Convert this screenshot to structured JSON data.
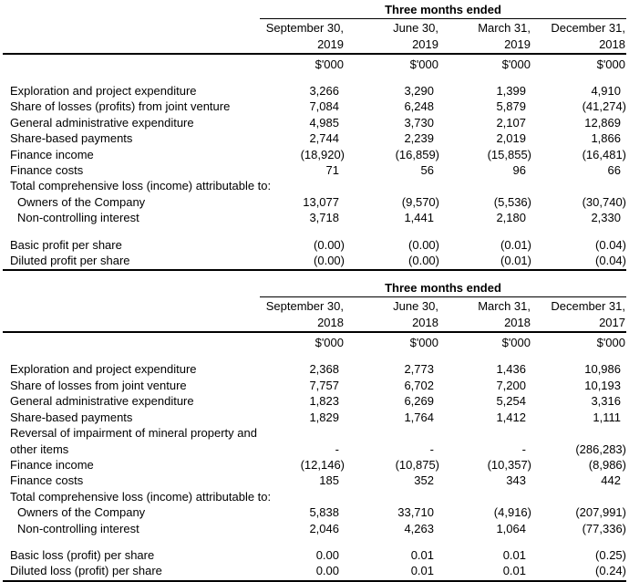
{
  "page": {
    "background_color": "#ffffff",
    "text_color": "#000000",
    "rule_color": "#000000"
  },
  "tables": [
    {
      "title": "Three months ended",
      "columns": [
        {
          "month": "September 30,",
          "year": "2019"
        },
        {
          "month": "June 30,",
          "year": "2019"
        },
        {
          "month": "March 31,",
          "year": "2019"
        },
        {
          "month": "December 31,",
          "year": "2018"
        }
      ],
      "units": [
        "$'000",
        "$'000",
        "$'000",
        "$'000"
      ],
      "rows": [
        {
          "label": "Exploration and project expenditure",
          "values": [
            "3,266",
            "3,290",
            "1,399",
            "4,910"
          ]
        },
        {
          "label": "Share of losses (profits) from joint venture",
          "values": [
            "7,084",
            "6,248",
            "5,879",
            "(41,274)"
          ]
        },
        {
          "label": "General administrative expenditure",
          "values": [
            "4,985",
            "3,730",
            "2,107",
            "12,869"
          ]
        },
        {
          "label": "Share-based payments",
          "values": [
            "2,744",
            "2,239",
            "2,019",
            "1,866"
          ]
        },
        {
          "label": "Finance income",
          "values": [
            "(18,920)",
            "(16,859)",
            "(15,855)",
            "(16,481)"
          ]
        },
        {
          "label": "Finance costs",
          "values": [
            "71",
            "56",
            "96",
            "66"
          ]
        },
        {
          "label": "Total comprehensive loss (income) attributable to:",
          "span": true
        },
        {
          "label": "Owners of the Company",
          "indent": true,
          "values": [
            "13,077",
            "(9,570)",
            "(5,536)",
            "(30,740)"
          ]
        },
        {
          "label": "Non-controlling interest",
          "indent": true,
          "values": [
            "3,718",
            "1,441",
            "2,180",
            "2,330"
          ]
        },
        {
          "spacer": true
        },
        {
          "label": "Basic profit per share",
          "values": [
            "(0.00)",
            "(0.00)",
            "(0.01)",
            "(0.04)"
          ]
        },
        {
          "label": "Diluted profit per share",
          "values": [
            "(0.00)",
            "(0.00)",
            "(0.01)",
            "(0.04)"
          ]
        }
      ]
    },
    {
      "title": "Three months ended",
      "columns": [
        {
          "month": "September 30,",
          "year": "2018"
        },
        {
          "month": "June 30,",
          "year": "2018"
        },
        {
          "month": "March 31,",
          "year": "2018"
        },
        {
          "month": "December 31,",
          "year": "2017"
        }
      ],
      "units": [
        "$'000",
        "$'000",
        "$'000",
        "$'000"
      ],
      "rows": [
        {
          "label": "Exploration and project expenditure",
          "values": [
            "2,368",
            "2,773",
            "1,436",
            "10,986"
          ]
        },
        {
          "label": "Share of losses from joint venture",
          "values": [
            "7,757",
            "6,702",
            "7,200",
            "10,193"
          ]
        },
        {
          "label": "General administrative expenditure",
          "values": [
            "1,823",
            "6,269",
            "5,254",
            "3,316"
          ]
        },
        {
          "label": "Share-based payments",
          "values": [
            "1,829",
            "1,764",
            "1,412",
            "1,111"
          ]
        },
        {
          "label": "Reversal of impairment of mineral property and other items",
          "wrap": true,
          "values": [
            "-",
            "-",
            "-",
            "(286,283)"
          ]
        },
        {
          "label": "Finance income",
          "values": [
            "(12,146)",
            "(10,875)",
            "(10,357)",
            "(8,986)"
          ]
        },
        {
          "label": "Finance costs",
          "values": [
            "185",
            "352",
            "343",
            "442"
          ]
        },
        {
          "label": "Total comprehensive loss (income) attributable to:",
          "span": true
        },
        {
          "label": "Owners of the Company",
          "indent": true,
          "values": [
            "5,838",
            "33,710",
            "(4,916)",
            "(207,991)"
          ]
        },
        {
          "label": "Non-controlling interest",
          "indent": true,
          "values": [
            "2,046",
            "4,263",
            "1,064",
            "(77,336)"
          ]
        },
        {
          "spacer": true
        },
        {
          "label": "Basic loss (profit) per share",
          "values": [
            "0.00",
            "0.01",
            "0.01",
            "(0.25)"
          ]
        },
        {
          "label": "Diluted loss (profit) per share",
          "values": [
            "0.00",
            "0.01",
            "0.01",
            "(0.24)"
          ]
        }
      ]
    }
  ]
}
